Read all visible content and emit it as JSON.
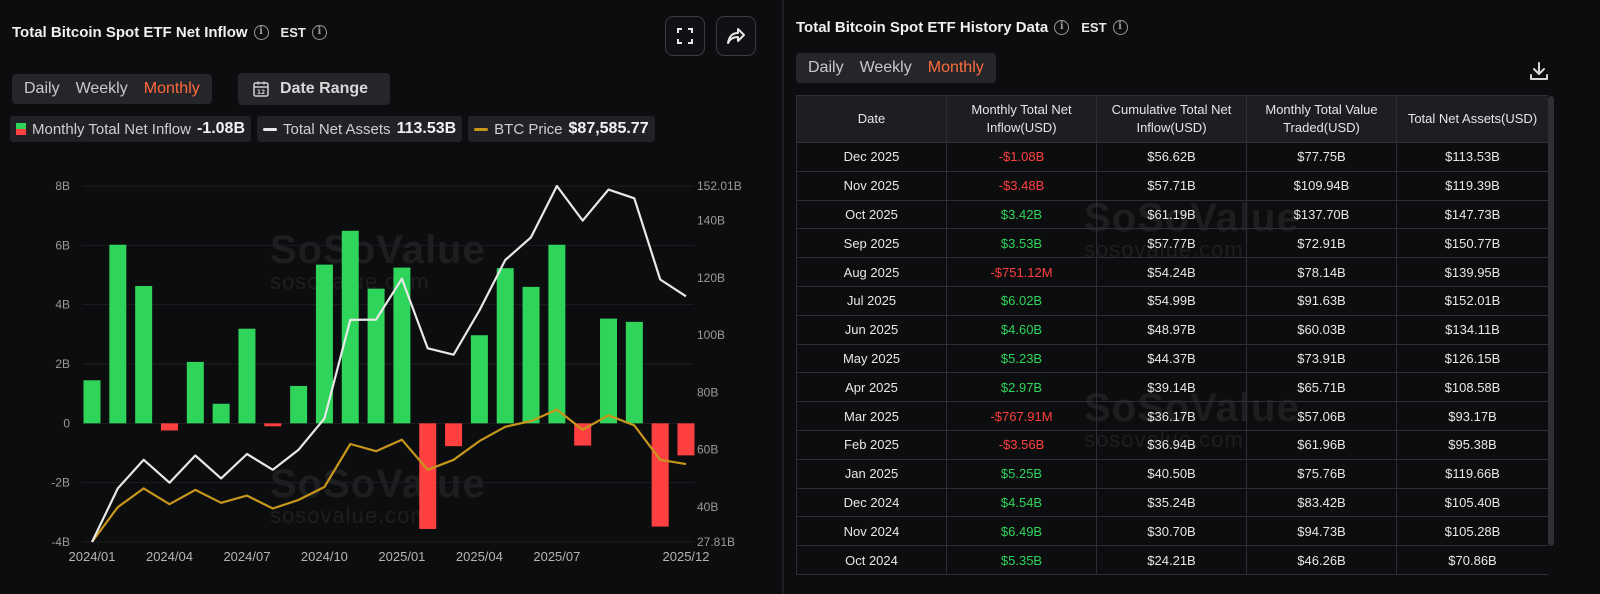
{
  "left": {
    "title": "Total Bitcoin Spot ETF Net Inflow",
    "tz": "EST",
    "tabs": [
      "Daily",
      "Weekly",
      "Monthly"
    ],
    "active_tab": "Monthly",
    "date_range_label": "Date Range",
    "legend": {
      "inflow_label": "Monthly Total Net Inflow",
      "inflow_value": "-1.08B",
      "assets_label": "Total Net Assets",
      "assets_value": "113.53B",
      "btc_label": "BTC Price",
      "btc_value": "$87,585.77"
    },
    "watermark": "SoSoValue",
    "watermark_sub": "sosovalue.com"
  },
  "right": {
    "title": "Total Bitcoin Spot ETF History Data",
    "tz": "EST",
    "tabs": [
      "Daily",
      "Weekly",
      "Monthly"
    ],
    "active_tab": "Monthly",
    "columns": [
      "Date",
      "Monthly Total Net Inflow(USD)",
      "Cumulative Total Net Inflow(USD)",
      "Monthly Total Value Traded(USD)",
      "Total Net Assets(USD)"
    ],
    "rows": [
      [
        "Dec 2025",
        "-$1.08B",
        "$56.62B",
        "$77.75B",
        "$113.53B"
      ],
      [
        "Nov 2025",
        "-$3.48B",
        "$57.71B",
        "$109.94B",
        "$119.39B"
      ],
      [
        "Oct 2025",
        "$3.42B",
        "$61.19B",
        "$137.70B",
        "$147.73B"
      ],
      [
        "Sep 2025",
        "$3.53B",
        "$57.77B",
        "$72.91B",
        "$150.77B"
      ],
      [
        "Aug 2025",
        "-$751.12M",
        "$54.24B",
        "$78.14B",
        "$139.95B"
      ],
      [
        "Jul 2025",
        "$6.02B",
        "$54.99B",
        "$91.63B",
        "$152.01B"
      ],
      [
        "Jun 2025",
        "$4.60B",
        "$48.97B",
        "$60.03B",
        "$134.11B"
      ],
      [
        "May 2025",
        "$5.23B",
        "$44.37B",
        "$73.91B",
        "$126.15B"
      ],
      [
        "Apr 2025",
        "$2.97B",
        "$39.14B",
        "$65.71B",
        "$108.58B"
      ],
      [
        "Mar 2025",
        "-$767.91M",
        "$36.17B",
        "$57.06B",
        "$93.17B"
      ],
      [
        "Feb 2025",
        "-$3.56B",
        "$36.94B",
        "$61.96B",
        "$95.38B"
      ],
      [
        "Jan 2025",
        "$5.25B",
        "$40.50B",
        "$75.76B",
        "$119.66B"
      ],
      [
        "Dec 2024",
        "$4.54B",
        "$35.24B",
        "$83.42B",
        "$105.40B"
      ],
      [
        "Nov 2024",
        "$6.49B",
        "$30.70B",
        "$94.73B",
        "$105.28B"
      ],
      [
        "Oct 2024",
        "$5.35B",
        "$24.21B",
        "$46.26B",
        "$70.86B"
      ]
    ]
  },
  "colors": {
    "positive": "#2fd45a",
    "negative": "#ff4040",
    "assets_line": "#e8e8e8",
    "btc_line": "#c8961a",
    "accent": "#ff6a3d"
  },
  "icons": {
    "expand": "expand-icon",
    "share": "share-icon",
    "calendar": "calendar-icon",
    "download": "download-icon",
    "info": "info-icon"
  },
  "chart_data": {
    "type": "bar",
    "x_tick_labels": [
      "2024/01",
      "2024/04",
      "2024/07",
      "2024/10",
      "2025/01",
      "2025/04",
      "2025/07",
      "2025/12"
    ],
    "left_axis": {
      "ticks": [
        "8B",
        "6B",
        "4B",
        "2B",
        "0",
        "-2B",
        "-4B"
      ],
      "ylim": [
        -4,
        8
      ]
    },
    "right_axis": {
      "ticks": [
        "152.01B",
        "140B",
        "120B",
        "100B",
        "80B",
        "60B",
        "40B",
        "27.81B"
      ],
      "ylim": [
        27.81,
        152.01
      ]
    },
    "months": [
      "2024-01",
      "2024-02",
      "2024-03",
      "2024-04",
      "2024-05",
      "2024-06",
      "2024-07",
      "2024-08",
      "2024-09",
      "2024-10",
      "2024-11",
      "2024-12",
      "2025-01",
      "2025-02",
      "2025-03",
      "2025-04",
      "2025-05",
      "2025-06",
      "2025-07",
      "2025-08",
      "2025-09",
      "2025-10",
      "2025-11",
      "2025-12"
    ],
    "series": [
      {
        "values": [
          1.45,
          6.02,
          4.63,
          -0.24,
          2.07,
          0.66,
          3.19,
          -0.1,
          1.26,
          5.35,
          6.49,
          4.54,
          5.25,
          -3.56,
          -0.77,
          2.97,
          5.23,
          4.6,
          6.02,
          -0.75,
          3.53,
          3.42,
          -3.48,
          -1.08
        ]
      },
      {
        "values": [
          27.81,
          46.5,
          56.5,
          48.5,
          58.0,
          50.0,
          58.5,
          53.0,
          60.0,
          70.86,
          105.28,
          105.4,
          119.66,
          95.38,
          93.17,
          108.58,
          126.15,
          134.11,
          152.01,
          139.95,
          150.77,
          147.73,
          119.39,
          113.53
        ]
      },
      {
        "values": [
          27.81,
          40.0,
          46.5,
          41.0,
          46.0,
          41.5,
          44.0,
          39.5,
          42.5,
          47.0,
          62.0,
          59.5,
          63.5,
          53.0,
          56.5,
          63.0,
          68.0,
          70.0,
          74.0,
          67.0,
          72.0,
          68.5,
          56.5,
          55.0
        ]
      }
    ]
  }
}
